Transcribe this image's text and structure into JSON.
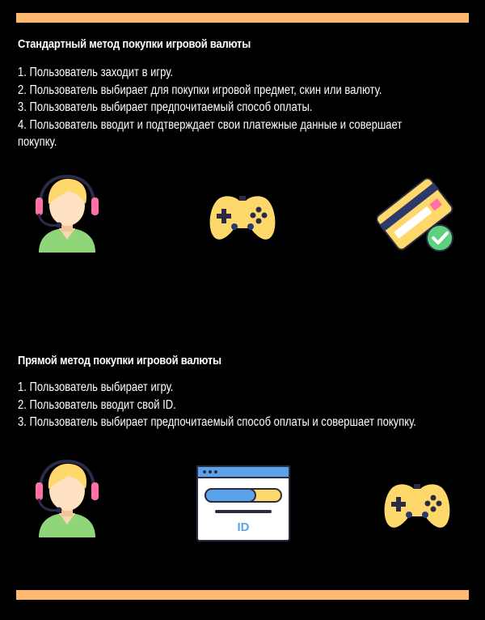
{
  "colors": {
    "background": "#000000",
    "accent_bar": "#ffb870",
    "text": "#ffffff"
  },
  "standard": {
    "title": "Стандартный метод покупки игровой валюты",
    "steps": [
      "1. Пользователь заходит в игру.",
      "2. Пользователь выбирает для покупки игровой предмет, скин или валюту.",
      "3. Пользователь выбирает предпочитаемый способ оплаты.",
      "4. Пользователь вводит и подтверждает свои платежные данные и совершает покупку."
    ],
    "icons": [
      "user-headset-icon",
      "gamepad-icon",
      "credit-card-check-icon"
    ]
  },
  "direct": {
    "title": "Прямой метод покупки игровой валюты",
    "steps": [
      "1. Пользователь выбирает игру.",
      "2. Пользователь вводит свой ID.",
      "3. Пользователь выбирает предпочитаемый способ оплаты и совершает покупку."
    ],
    "icons": [
      "user-headset-icon",
      "id-window-icon",
      "gamepad-icon"
    ],
    "id_label": "ID"
  }
}
